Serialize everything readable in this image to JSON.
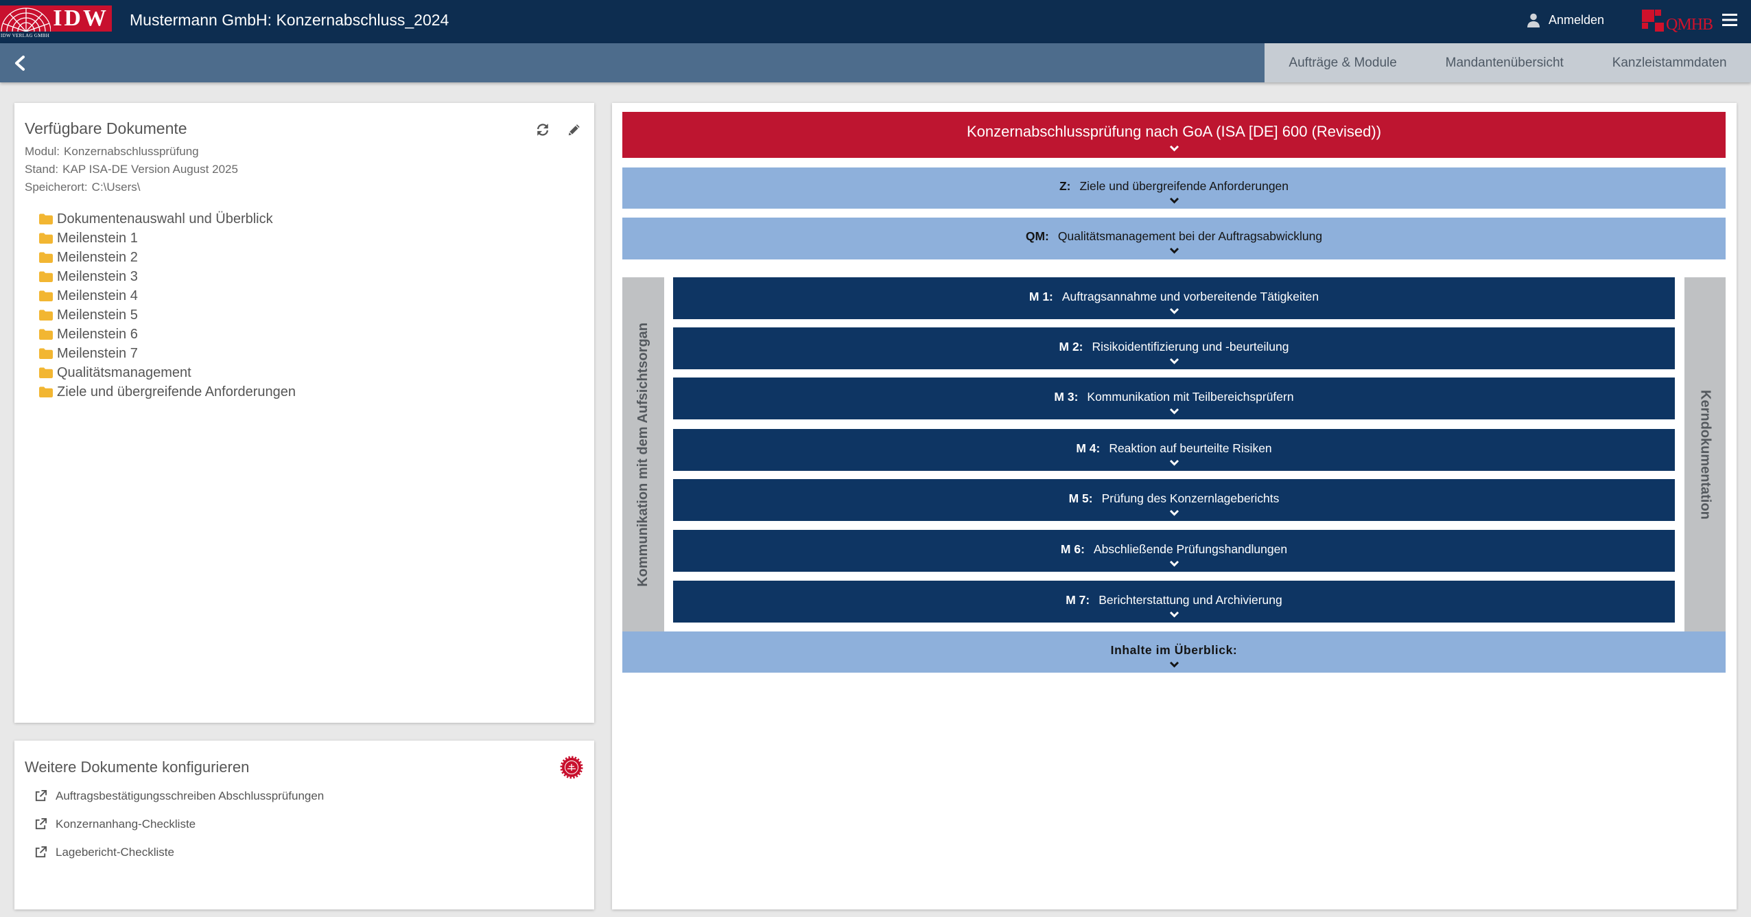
{
  "header": {
    "logo_text": "IDW",
    "logo_subtext": "IDW VERLAG GMBH",
    "title": "Mustermann GmbH: Konzernabschluss_2024",
    "login_label": "Anmelden",
    "brand_logo_text": "QMHB",
    "icons": {
      "user": "user-icon",
      "menu": "hamburger-icon"
    }
  },
  "subnav": {
    "back_icon": "chevron-left-icon",
    "tabs": [
      {
        "label": "Aufträge & Module"
      },
      {
        "label": "Mandantenübersicht"
      },
      {
        "label": "Kanzleistammdaten"
      }
    ]
  },
  "documents_panel": {
    "title": "Verfügbare Dokumente",
    "actions": {
      "refresh_icon": "refresh-icon",
      "edit_icon": "pencil-icon"
    },
    "meta": [
      {
        "label": "Modul:",
        "value": "Konzernabschlussprüfung"
      },
      {
        "label": "Stand:",
        "value": "KAP ISA-DE Version August 2025"
      },
      {
        "label": "Speicherort:",
        "value": "C:\\Users\\"
      }
    ],
    "folder_icon": "folder-icon",
    "folders": [
      "Dokumentenauswahl und Überblick",
      "Meilenstein 1",
      "Meilenstein 2",
      "Meilenstein 3",
      "Meilenstein 4",
      "Meilenstein 5",
      "Meilenstein 6",
      "Meilenstein 7",
      "Qualitätsmanagement",
      "Ziele und übergreifende Anforderungen"
    ]
  },
  "config_panel": {
    "title": "Weitere Dokumente konfigurieren",
    "badge_icon": "seal-badge-icon",
    "link_icon": "external-link-icon",
    "links": [
      "Auftragsbestätigungsschreiben Abschlussprüfungen",
      "Konzernanhang-Checkliste",
      "Lagebericht-Checkliste"
    ]
  },
  "process": {
    "header": "Konzernabschlussprüfung nach GoA (ISA [DE] 600 (Revised))",
    "pre_rows": [
      {
        "code": "Z:",
        "label": "Ziele und übergreifende Anforderungen"
      },
      {
        "code": "QM:",
        "label": "Qualitätsmanagement bei der Auftragsabwicklung"
      }
    ],
    "side_left": "Kommunikation mit dem Aufsichtsorgan",
    "side_right": "Kerndokumentation",
    "milestones": [
      {
        "code": "M 1:",
        "label": "Auftragsannahme und vorbereitende Tätigkeiten"
      },
      {
        "code": "M 2:",
        "label": "Risikoidentifizierung und -beurteilung"
      },
      {
        "code": "M 3:",
        "label": "Kommunikation mit Teilbereichsprüfern"
      },
      {
        "code": "M 4:",
        "label": "Reaktion auf beurteilte Risiken"
      },
      {
        "code": "M 5:",
        "label": "Prüfung des Konzernlageberichts"
      },
      {
        "code": "M 6:",
        "label": "Abschließende Prüfungshandlungen"
      },
      {
        "code": "M 7:",
        "label": "Berichterstattung und Archivierung"
      }
    ],
    "overview": "Inhalte im Überblick:",
    "expand_icon": "chevron-down-icon"
  },
  "colors": {
    "header_bg": "#0d2d50",
    "subnav_bg": "#4d6c8c",
    "tabs_bg": "#c6ccd3",
    "accent_red": "#be1530",
    "light_blue": "#8eb0db",
    "milestone_navy": "#0e3563",
    "side_gray": "#bfc1c3",
    "folder_amber": "#f2b632",
    "page_bg": "#e8e8e8"
  }
}
